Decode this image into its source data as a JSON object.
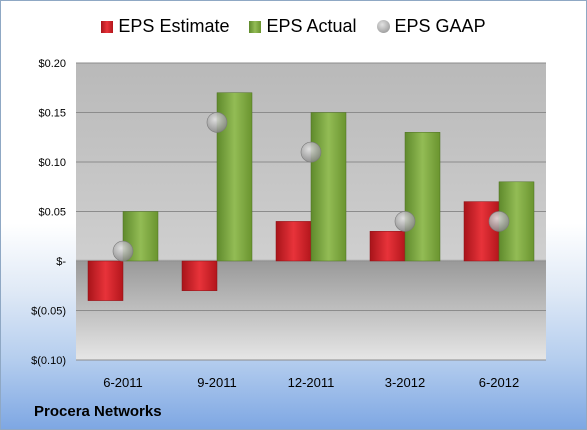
{
  "legend": {
    "estimate": "EPS Estimate",
    "actual": "EPS Actual",
    "gaap": "EPS GAAP"
  },
  "colors": {
    "estimate": "#d81f27",
    "actual": "#7ea640",
    "gaap": "#a9a9a9"
  },
  "company": "Procera Networks",
  "y_ticks": [
    "$0.20",
    "$0.15",
    "$0.10",
    "$0.05",
    "$-",
    "$(0.05)",
    "$(0.10)"
  ],
  "chart_data": {
    "type": "bar",
    "categories": [
      "6-2011",
      "9-2011",
      "12-2011",
      "3-2012",
      "6-2012"
    ],
    "series": [
      {
        "name": "EPS Estimate",
        "values": [
          -0.04,
          -0.03,
          0.04,
          0.03,
          0.06
        ]
      },
      {
        "name": "EPS Actual",
        "values": [
          0.05,
          0.17,
          0.15,
          0.13,
          0.08
        ]
      },
      {
        "name": "EPS GAAP",
        "values": [
          0.01,
          0.14,
          0.11,
          0.04,
          0.04
        ]
      }
    ],
    "ylim": [
      -0.1,
      0.2
    ],
    "grid": true,
    "legend_position": "top"
  }
}
